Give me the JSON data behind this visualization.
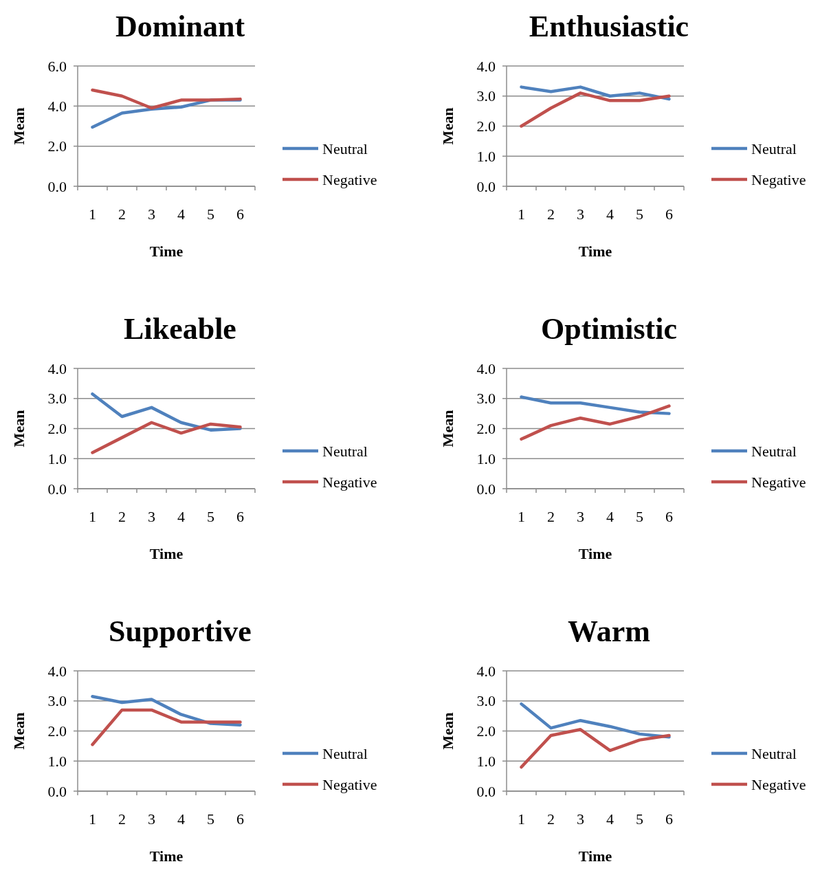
{
  "chart_data": [
    {
      "type": "line",
      "title": "Dominant",
      "xlabel": "Time",
      "ylabel": "Mean",
      "categories": [
        "1",
        "2",
        "3",
        "4",
        "5",
        "6"
      ],
      "ylim": [
        0,
        6
      ],
      "yticks": [
        {
          "value": 0,
          "label": "0.0"
        },
        {
          "value": 2,
          "label": "2.0"
        },
        {
          "value": 4,
          "label": "4.0"
        },
        {
          "value": 6,
          "label": "6.0"
        }
      ],
      "grid": "y",
      "legend": "right",
      "marker": "none",
      "series": [
        {
          "name": "Neutral",
          "color": "#4f81bd",
          "values": [
            2.95,
            3.65,
            3.85,
            3.95,
            4.3,
            4.3
          ]
        },
        {
          "name": "Negative",
          "color": "#c0504d",
          "values": [
            4.8,
            4.5,
            3.9,
            4.3,
            4.3,
            4.35
          ]
        }
      ]
    },
    {
      "type": "line",
      "title": "Enthusiastic",
      "xlabel": "Time",
      "ylabel": "Mean",
      "categories": [
        "1",
        "2",
        "3",
        "4",
        "5",
        "6"
      ],
      "ylim": [
        0,
        4
      ],
      "yticks": [
        {
          "value": 0,
          "label": "0.0"
        },
        {
          "value": 1,
          "label": "1.0"
        },
        {
          "value": 2,
          "label": "2.0"
        },
        {
          "value": 3,
          "label": "3.0"
        },
        {
          "value": 4,
          "label": "4.0"
        }
      ],
      "grid": "y",
      "legend": "right",
      "marker": "none",
      "series": [
        {
          "name": "Neutral",
          "color": "#4f81bd",
          "values": [
            3.3,
            3.15,
            3.3,
            3.0,
            3.1,
            2.9
          ]
        },
        {
          "name": "Negative",
          "color": "#c0504d",
          "values": [
            2.0,
            2.6,
            3.1,
            2.85,
            2.85,
            3.0
          ]
        }
      ]
    },
    {
      "type": "line",
      "title": "Likeable",
      "xlabel": "Time",
      "ylabel": "Mean",
      "categories": [
        "1",
        "2",
        "3",
        "4",
        "5",
        "6"
      ],
      "ylim": [
        0,
        4
      ],
      "yticks": [
        {
          "value": 0,
          "label": "0.0"
        },
        {
          "value": 1,
          "label": "1.0"
        },
        {
          "value": 2,
          "label": "2.0"
        },
        {
          "value": 3,
          "label": "3.0"
        },
        {
          "value": 4,
          "label": "4.0"
        }
      ],
      "grid": "y",
      "legend": "right",
      "marker": "none",
      "series": [
        {
          "name": "Neutral",
          "color": "#4f81bd",
          "values": [
            3.15,
            2.4,
            2.7,
            2.2,
            1.95,
            2.0
          ]
        },
        {
          "name": "Negative",
          "color": "#c0504d",
          "values": [
            1.2,
            1.7,
            2.2,
            1.85,
            2.15,
            2.05
          ]
        }
      ]
    },
    {
      "type": "line",
      "title": "Optimistic",
      "xlabel": "Time",
      "ylabel": "Mean",
      "categories": [
        "1",
        "2",
        "3",
        "4",
        "5",
        "6"
      ],
      "ylim": [
        0,
        4
      ],
      "yticks": [
        {
          "value": 0,
          "label": "0.0"
        },
        {
          "value": 1,
          "label": "1.0"
        },
        {
          "value": 2,
          "label": "2.0"
        },
        {
          "value": 3,
          "label": "3.0"
        },
        {
          "value": 4,
          "label": "4.0"
        }
      ],
      "grid": "y",
      "legend": "right",
      "marker": "none",
      "series": [
        {
          "name": "Neutral",
          "color": "#4f81bd",
          "values": [
            3.05,
            2.85,
            2.85,
            2.7,
            2.55,
            2.5
          ]
        },
        {
          "name": "Negative",
          "color": "#c0504d",
          "values": [
            1.65,
            2.1,
            2.35,
            2.15,
            2.4,
            2.75
          ]
        }
      ]
    },
    {
      "type": "line",
      "title": "Supportive",
      "xlabel": "Time",
      "ylabel": "Mean",
      "categories": [
        "1",
        "2",
        "3",
        "4",
        "5",
        "6"
      ],
      "ylim": [
        0,
        4
      ],
      "yticks": [
        {
          "value": 0,
          "label": "0.0"
        },
        {
          "value": 1,
          "label": "1.0"
        },
        {
          "value": 2,
          "label": "2.0"
        },
        {
          "value": 3,
          "label": "3.0"
        },
        {
          "value": 4,
          "label": "4.0"
        }
      ],
      "grid": "y",
      "legend": "right",
      "marker": "none",
      "series": [
        {
          "name": "Neutral",
          "color": "#4f81bd",
          "values": [
            3.15,
            2.95,
            3.05,
            2.55,
            2.25,
            2.2
          ]
        },
        {
          "name": "Negative",
          "color": "#c0504d",
          "values": [
            1.55,
            2.7,
            2.7,
            2.3,
            2.3,
            2.3
          ]
        }
      ]
    },
    {
      "type": "line",
      "title": "Warm",
      "xlabel": "Time",
      "ylabel": "Mean",
      "categories": [
        "1",
        "2",
        "3",
        "4",
        "5",
        "6"
      ],
      "ylim": [
        0,
        4
      ],
      "yticks": [
        {
          "value": 0,
          "label": "0.0"
        },
        {
          "value": 1,
          "label": "1.0"
        },
        {
          "value": 2,
          "label": "2.0"
        },
        {
          "value": 3,
          "label": "3.0"
        },
        {
          "value": 4,
          "label": "4.0"
        }
      ],
      "grid": "y",
      "legend": "right",
      "marker": "none",
      "series": [
        {
          "name": "Neutral",
          "color": "#4f81bd",
          "values": [
            2.9,
            2.1,
            2.35,
            2.15,
            1.9,
            1.8
          ]
        },
        {
          "name": "Negative",
          "color": "#c0504d",
          "values": [
            0.8,
            1.85,
            2.05,
            1.35,
            1.7,
            1.85
          ]
        }
      ]
    }
  ]
}
